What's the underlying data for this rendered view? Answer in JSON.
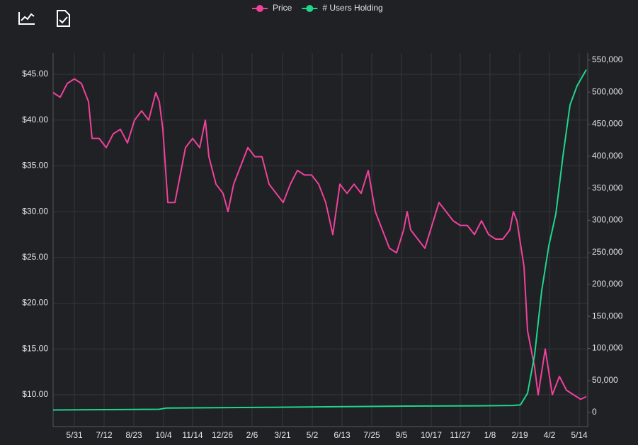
{
  "chart_data": {
    "type": "line",
    "series": [
      {
        "name": "Price",
        "color": "#f0419b",
        "axis": "y",
        "x": [
          0,
          10,
          20,
          30,
          40,
          50,
          55,
          65,
          75,
          85,
          95,
          105,
          115,
          125,
          135,
          145,
          150,
          155,
          162,
          172,
          182,
          187,
          197,
          207,
          215,
          220,
          230,
          240,
          247,
          255,
          265,
          275,
          285,
          295,
          305,
          315,
          325,
          335,
          345,
          355,
          365,
          375,
          385,
          395,
          405,
          415,
          425,
          435,
          445,
          455,
          465,
          475,
          485,
          495,
          500,
          505,
          515,
          525,
          535,
          545,
          555,
          565,
          575,
          585,
          595,
          605,
          615,
          625,
          635,
          645,
          650,
          655,
          665,
          670,
          680,
          685,
          695,
          705,
          715,
          725,
          735,
          745,
          753
        ],
        "values": [
          43,
          42.5,
          44,
          44.5,
          44,
          42,
          38,
          38,
          37,
          38.5,
          39,
          37.5,
          40,
          41,
          40,
          43,
          42,
          39,
          31,
          31,
          35,
          37,
          38,
          37,
          40,
          36,
          33,
          32,
          30,
          33,
          35,
          37,
          36,
          36,
          33,
          32,
          31,
          33,
          34.5,
          34,
          34,
          33,
          31,
          27.5,
          33,
          32,
          33,
          32,
          34.5,
          30,
          28,
          26,
          25.5,
          28,
          30,
          28,
          27,
          26,
          28.5,
          31,
          30,
          29,
          28.5,
          28.5,
          27.5,
          29,
          27.5,
          27,
          27,
          28,
          30,
          29,
          24,
          17,
          13,
          10,
          15,
          10,
          12,
          10.5,
          10,
          9.5,
          9.8
        ]
      },
      {
        "name": "# Users Holding",
        "color": "#1fd68a",
        "axis": "y2",
        "x": [
          0,
          80,
          150,
          160,
          300,
          400,
          500,
          600,
          650,
          660,
          670,
          680,
          690,
          700,
          710,
          720,
          730,
          740,
          753
        ],
        "values": [
          4000,
          4500,
          5000,
          7000,
          8000,
          9000,
          10000,
          10500,
          11000,
          12000,
          30000,
          90000,
          190000,
          260000,
          310000,
          400000,
          480000,
          510000,
          535000
        ]
      }
    ],
    "xlim": [
      0,
      755
    ],
    "xticks": [
      {
        "value": 30,
        "label": "5/31"
      },
      {
        "value": 72,
        "label": "7/12"
      },
      {
        "value": 114,
        "label": "8/23"
      },
      {
        "value": 156,
        "label": "10/4"
      },
      {
        "value": 197,
        "label": "11/14"
      },
      {
        "value": 239,
        "label": "12/26"
      },
      {
        "value": 281,
        "label": "2/6"
      },
      {
        "value": 324,
        "label": "3/21"
      },
      {
        "value": 366,
        "label": "5/2"
      },
      {
        "value": 408,
        "label": "6/13"
      },
      {
        "value": 450,
        "label": "7/25"
      },
      {
        "value": 492,
        "label": "9/5"
      },
      {
        "value": 534,
        "label": "10/17"
      },
      {
        "value": 575,
        "label": "11/27"
      },
      {
        "value": 617,
        "label": "1/8"
      },
      {
        "value": 659,
        "label": "2/19"
      },
      {
        "value": 701,
        "label": "4/2"
      },
      {
        "value": 743,
        "label": "5/14"
      }
    ],
    "ylim": [
      6.52,
      47.32
    ],
    "yticks": [
      {
        "value": 10,
        "label": "$10.00"
      },
      {
        "value": 15,
        "label": "$15.00"
      },
      {
        "value": 20,
        "label": "$20.00"
      },
      {
        "value": 25,
        "label": "$25.00"
      },
      {
        "value": 30,
        "label": "$30.00"
      },
      {
        "value": 35,
        "label": "$35.00"
      },
      {
        "value": 40,
        "label": "$40.00"
      },
      {
        "value": 45,
        "label": "$45.00"
      }
    ],
    "y2lim": [
      -22000,
      561000
    ],
    "y2ticks": [
      0,
      {
        "value": 50000,
        "label": "50,000"
      },
      {
        "value": 100000,
        "label": "100,000"
      },
      {
        "value": 150000,
        "label": "150,000"
      },
      {
        "value": 200000,
        "label": "200,000"
      },
      {
        "value": 250000,
        "label": "250,000"
      },
      {
        "value": 300000,
        "label": "300,000"
      },
      {
        "value": 350000,
        "label": "350,000"
      },
      {
        "value": 400000,
        "label": "400,000"
      },
      {
        "value": 450000,
        "label": "450,000"
      },
      {
        "value": 500000,
        "label": "500,000"
      },
      {
        "value": 550000,
        "label": "550,000"
      }
    ],
    "grid": true
  }
}
